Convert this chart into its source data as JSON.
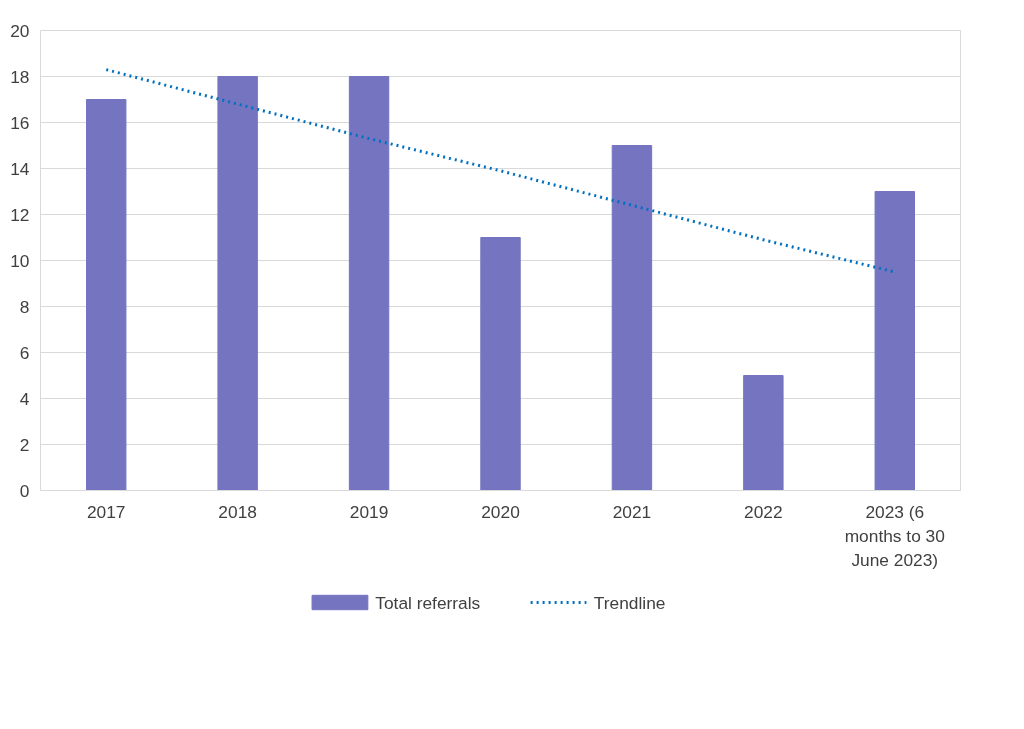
{
  "chart_data": {
    "type": "bar",
    "categories": [
      "2017",
      "2018",
      "2019",
      "2020",
      "2021",
      "2022",
      "2023 (6 months to 30 June 2023)"
    ],
    "series": [
      {
        "name": "Total referrals",
        "color": "#7474c1",
        "values": [
          17,
          18,
          18,
          11,
          15,
          5,
          13
        ]
      },
      {
        "name": "Trendline",
        "type": "line",
        "color": "#0070c0",
        "line_style": "dotted",
        "values": [
          18.3,
          16.8,
          15.3,
          13.9,
          12.4,
          10.9,
          9.5
        ]
      }
    ],
    "ylim": [
      0,
      20
    ],
    "yticks": [
      0,
      2,
      4,
      6,
      8,
      10,
      12,
      14,
      16,
      18,
      20
    ],
    "grid": "y",
    "legend": "bottom"
  }
}
